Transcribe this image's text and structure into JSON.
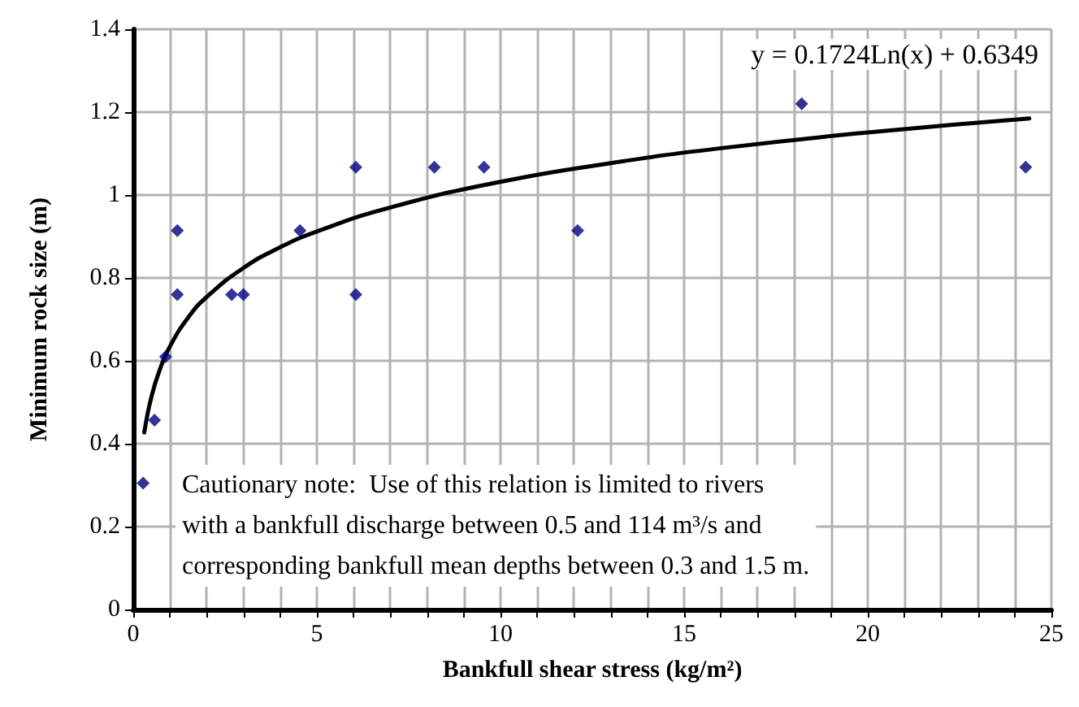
{
  "chart_data": {
    "type": "scatter",
    "xlabel": "Bankfull shear stress (kg/m²)",
    "ylabel": "Minimum rock size (m)",
    "series": [
      {
        "color": "#000080",
        "marker": "diamond",
        "x": [
          0.27,
          0.58,
          0.88,
          1.2,
          1.2,
          2.68,
          3.0,
          4.54,
          6.06,
          6.06,
          8.2,
          9.55,
          12.1,
          18.2,
          24.3
        ],
        "values": [
          0.305,
          0.457,
          0.61,
          0.914,
          0.76,
          0.76,
          0.76,
          0.914,
          1.067,
          0.76,
          1.067,
          1.067,
          0.914,
          1.22,
          1.067
        ]
      },
      {
        "type": "line",
        "color": "#000000",
        "marker": "none",
        "x": [
          0.3,
          0.5,
          0.75,
          1,
          1.5,
          2,
          3,
          4,
          5,
          7,
          10,
          13,
          16,
          20,
          24.4
        ],
        "values": [
          0.427,
          0.515,
          0.585,
          0.635,
          0.705,
          0.754,
          0.824,
          0.874,
          0.912,
          0.97,
          1.032,
          1.077,
          1.113,
          1.151,
          1.185
        ]
      }
    ],
    "xlim": [
      0,
      25
    ],
    "xticks": [
      0,
      {
        "value": 1,
        "label": null
      },
      {
        "value": 2,
        "label": null
      },
      {
        "value": 3,
        "label": null
      },
      {
        "value": 4,
        "label": null
      },
      5,
      {
        "value": 6,
        "label": null
      },
      {
        "value": 7,
        "label": null
      },
      {
        "value": 8,
        "label": null
      },
      {
        "value": 9,
        "label": null
      },
      10,
      {
        "value": 11,
        "label": null
      },
      {
        "value": 12,
        "label": null
      },
      {
        "value": 13,
        "label": null
      },
      {
        "value": 14,
        "label": null
      },
      15,
      {
        "value": 16,
        "label": null
      },
      {
        "value": 17,
        "label": null
      },
      {
        "value": 18,
        "label": null
      },
      {
        "value": 19,
        "label": null
      },
      20,
      {
        "value": 21,
        "label": null
      },
      {
        "value": 22,
        "label": null
      },
      {
        "value": 23,
        "label": null
      },
      {
        "value": 24,
        "label": null
      },
      25
    ],
    "ylim": [
      0,
      1.4
    ],
    "yticks": [
      0,
      0.2,
      0.4,
      0.6,
      0.8,
      1,
      1.2,
      1.4
    ],
    "grid": true,
    "annotations": [
      "y = 0.1724Ln(x) + 0.6349",
      "Cautionary note:  Use of this relation is limited to rivers\nwith a bankfull discharge between 0.5 and 114 m³/s and\ncorresponding bankfull mean depths between 0.3 and 1.5 m."
    ]
  }
}
